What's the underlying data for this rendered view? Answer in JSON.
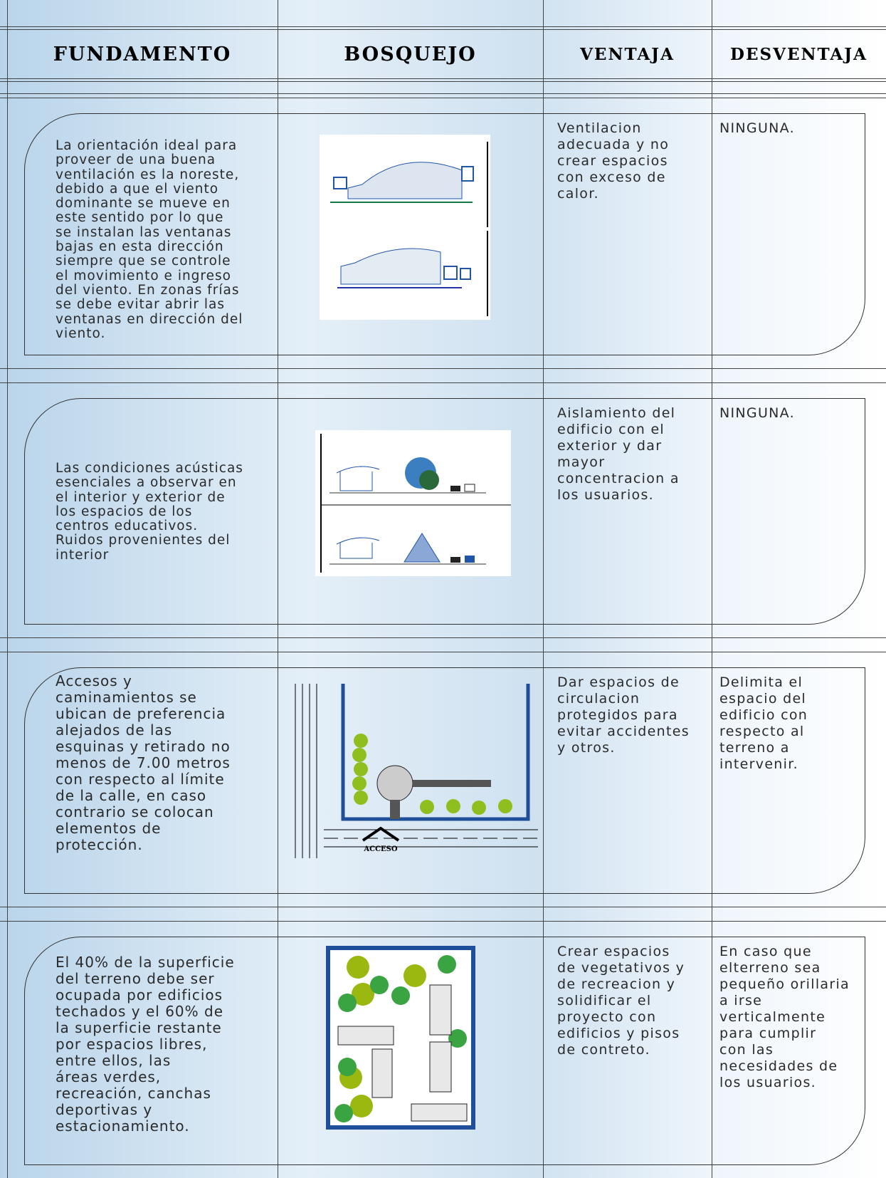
{
  "header": [
    "FUNDAMENTO",
    "BOSQUEJO",
    "VENTAJA",
    "DESVENTAJA"
  ],
  "rows": [
    {
      "fundamento": [
        "La orientación ideal para",
        "proveer de una buena",
        "ventilación es la noreste,",
        "debido a que el viento",
        "dominante se mueve en",
        "este sentido por lo que",
        "se instalan las ventanas",
        "bajas en esta dirección",
        "siempre que se controle",
        "el movimiento e ingreso",
        "del viento. En zonas frías",
        "se debe evitar abrir las",
        "ventanas en dirección del",
        "viento."
      ],
      "ventaja": [
        "Ventilacion",
        "adecuada y no",
        "crear espacios",
        "con exceso de",
        "calor."
      ],
      "desventaja": [
        "NINGUNA."
      ]
    },
    {
      "fundamento": [
        "Las condiciones acústicas",
        "esenciales a observar en",
        "el interior y exterior de",
        "los espacios de los",
        "centros educativos.",
        "Ruidos provenientes del",
        "interior"
      ],
      "ventaja": [
        "Aislamiento del",
        "edificio con el",
        "exterior y dar",
        "mayor",
        "concentracion a",
        "los usuarios."
      ],
      "desventaja": [
        "NINGUNA."
      ]
    },
    {
      "fundamento": [
        "Accesos y",
        "caminamientos se",
        "ubican de preferencia",
        "alejados de las",
        "esquinas y retirado no",
        "menos de 7.00 metros",
        "con respecto al límite",
        "de la calle, en caso",
        "contrario se colocan",
        "elementos de",
        "protección."
      ],
      "ventaja": [
        "Dar espacios de",
        "circulacion",
        "protegidos para",
        "evitar accidentes",
        "y otros."
      ],
      "desventaja": [
        "Delimita el",
        "espacio del",
        "edificio con",
        "respecto al",
        "terreno a",
        "intervenir."
      ],
      "sketch_label": "ACCESO"
    },
    {
      "fundamento": [
        "El 40% de la superficie",
        "del terreno debe ser",
        "ocupada por edificios",
        "techados y el 60% de",
        "la superficie restante",
        "por espacios libres,",
        "entre ellos, las",
        "áreas verdes,",
        "recreación, canchas",
        "deportivas y",
        "estacionamiento."
      ],
      "ventaja": [
        "Crear espacios",
        "de vegetativos y",
        "de recreacion y",
        "solidificar el",
        "proyecto con",
        "edificios y pisos",
        "de contreto."
      ],
      "desventaja": [
        "En caso que",
        "elterreno sea",
        "pequeño orillaria",
        "a irse",
        "verticalmente",
        "para cumplir",
        "con las",
        "necesidades de",
        "los usuarios."
      ]
    }
  ]
}
